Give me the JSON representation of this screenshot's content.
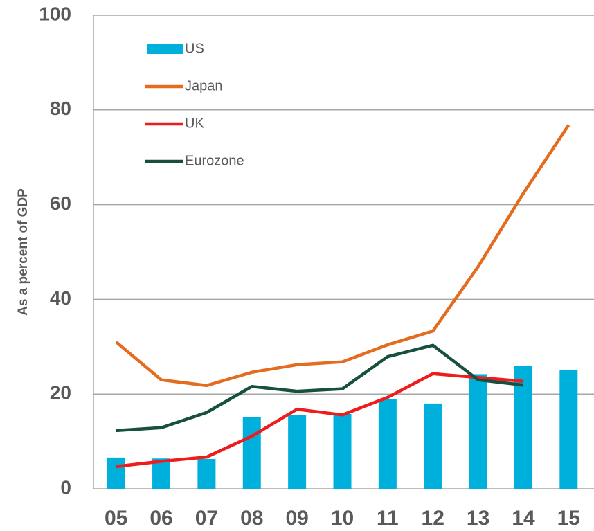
{
  "chart_data": {
    "type": "bar_line",
    "y_label": "As a percent of GDP",
    "categories": [
      "05",
      "06",
      "07",
      "08",
      "09",
      "10",
      "11",
      "12",
      "13",
      "14",
      "15"
    ],
    "series": [
      {
        "name": "US",
        "type": "bar",
        "color": "#00b0dc",
        "values": [
          6.6,
          6.4,
          6.3,
          15.2,
          15.5,
          15.8,
          18.9,
          18.0,
          24.2,
          25.9,
          25.0
        ]
      },
      {
        "name": "Japan",
        "type": "line",
        "color": "#e36c1f",
        "values": [
          31.0,
          23.0,
          21.8,
          24.6,
          26.2,
          26.8,
          30.4,
          33.3,
          46.9,
          62.4,
          76.8
        ]
      },
      {
        "name": "UK",
        "type": "line",
        "color": "#ee1c1c",
        "values": [
          4.7,
          5.8,
          6.7,
          11.1,
          16.8,
          15.6,
          19.3,
          24.3,
          23.5,
          22.7,
          null
        ]
      },
      {
        "name": "Eurozone",
        "type": "line",
        "color": "#17503f",
        "values": [
          12.3,
          12.9,
          16.1,
          21.6,
          20.6,
          21.1,
          27.9,
          30.3,
          23.0,
          21.9,
          null
        ]
      }
    ],
    "ylim": [
      0,
      100
    ],
    "yticks": [
      0,
      20,
      40,
      60,
      80,
      100
    ],
    "grid": true,
    "legend": "top-left"
  }
}
